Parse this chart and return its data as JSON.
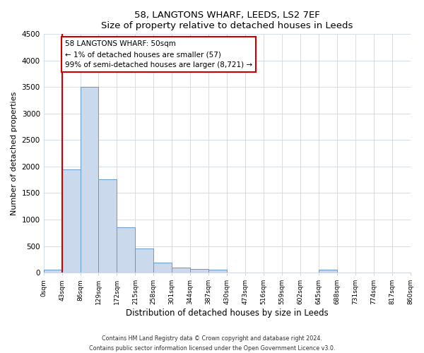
{
  "title": "58, LANGTONS WHARF, LEEDS, LS2 7EF",
  "subtitle": "Size of property relative to detached houses in Leeds",
  "xlabel": "Distribution of detached houses by size in Leeds",
  "ylabel": "Number of detached properties",
  "bin_edges": [
    0,
    43,
    86,
    129,
    172,
    215,
    258,
    301,
    344,
    387,
    430,
    473,
    516,
    559,
    602,
    645,
    688,
    731,
    774,
    817,
    860
  ],
  "bin_labels": [
    "0sqm",
    "43sqm",
    "86sqm",
    "129sqm",
    "172sqm",
    "215sqm",
    "258sqm",
    "301sqm",
    "344sqm",
    "387sqm",
    "430sqm",
    "473sqm",
    "516sqm",
    "559sqm",
    "602sqm",
    "645sqm",
    "688sqm",
    "731sqm",
    "774sqm",
    "817sqm",
    "860sqm"
  ],
  "bar_heights": [
    50,
    1950,
    3500,
    1760,
    860,
    460,
    185,
    100,
    65,
    55,
    0,
    0,
    0,
    0,
    0,
    55,
    0,
    0,
    0,
    0
  ],
  "bar_color": "#cad9ec",
  "bar_edge_color": "#6699cc",
  "red_line_x": 43,
  "annotation_title": "58 LANGTONS WHARF: 50sqm",
  "annotation_line1": "← 1% of detached houses are smaller (57)",
  "annotation_line2": "99% of semi-detached houses are larger (8,721) →",
  "annotation_box_color": "#ffffff",
  "annotation_box_edge_color": "#cc0000",
  "ylim": [
    0,
    4500
  ],
  "yticks": [
    0,
    500,
    1000,
    1500,
    2000,
    2500,
    3000,
    3500,
    4000,
    4500
  ],
  "footer_line1": "Contains HM Land Registry data © Crown copyright and database right 2024.",
  "footer_line2": "Contains public sector information licensed under the Open Government Licence v3.0.",
  "bg_color": "#ffffff",
  "plot_bg_color": "#ffffff",
  "grid_color": "#d0d8e8"
}
